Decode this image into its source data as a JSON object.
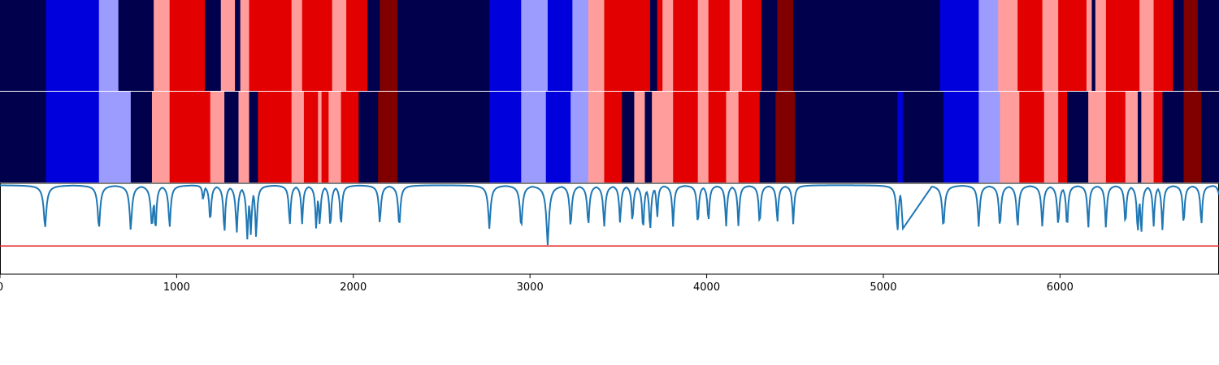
{
  "chart_data": {
    "type": "heatmap",
    "title": "",
    "xlabel": "",
    "ylabel": "",
    "xlim": [
      0,
      6900
    ],
    "x_ticks": [
      0,
      1000,
      2000,
      3000,
      4000,
      5000,
      6000
    ],
    "x_tick_labels": [
      "0",
      "1000",
      "2000",
      "3000",
      "4000",
      "5000",
      "6000"
    ],
    "legend": "none",
    "grid": false,
    "colors": {
      "0": "#00004c",
      "1": "#0000dd",
      "2": "#9c9cff",
      "3": "#ff9c9c",
      "4": "#e30000",
      "5": "#800000"
    },
    "tracks": [
      {
        "name": "",
        "segments": [
          [
            0,
            260,
            0
          ],
          [
            260,
            560,
            1
          ],
          [
            560,
            670,
            2
          ],
          [
            670,
            870,
            0
          ],
          [
            870,
            960,
            3
          ],
          [
            960,
            1160,
            4
          ],
          [
            1160,
            1250,
            0
          ],
          [
            1250,
            1330,
            3
          ],
          [
            1330,
            1360,
            0
          ],
          [
            1360,
            1410,
            3
          ],
          [
            1410,
            1650,
            4
          ],
          [
            1650,
            1710,
            3
          ],
          [
            1710,
            1880,
            4
          ],
          [
            1880,
            1960,
            3
          ],
          [
            1960,
            2080,
            4
          ],
          [
            2080,
            2150,
            0
          ],
          [
            2150,
            2250,
            5
          ],
          [
            2250,
            2770,
            0
          ],
          [
            2770,
            2950,
            1
          ],
          [
            2950,
            3100,
            2
          ],
          [
            3100,
            3240,
            1
          ],
          [
            3240,
            3330,
            2
          ],
          [
            3330,
            3420,
            3
          ],
          [
            3420,
            3680,
            4
          ],
          [
            3680,
            3720,
            0
          ],
          [
            3720,
            3750,
            4
          ],
          [
            3750,
            3810,
            3
          ],
          [
            3810,
            3950,
            4
          ],
          [
            3950,
            4010,
            3
          ],
          [
            4010,
            4130,
            4
          ],
          [
            4130,
            4200,
            3
          ],
          [
            4200,
            4310,
            4
          ],
          [
            4310,
            4400,
            0
          ],
          [
            4400,
            4490,
            5
          ],
          [
            4490,
            5320,
            0
          ],
          [
            5320,
            5540,
            1
          ],
          [
            5540,
            5650,
            2
          ],
          [
            5650,
            5760,
            3
          ],
          [
            5760,
            5900,
            4
          ],
          [
            5900,
            5990,
            3
          ],
          [
            5990,
            6150,
            4
          ],
          [
            6150,
            6180,
            3
          ],
          [
            6180,
            6200,
            0
          ],
          [
            6200,
            6260,
            3
          ],
          [
            6260,
            6450,
            4
          ],
          [
            6450,
            6530,
            3
          ],
          [
            6530,
            6640,
            4
          ],
          [
            6640,
            6700,
            0
          ],
          [
            6700,
            6780,
            5
          ],
          [
            6780,
            6900,
            0
          ]
        ]
      },
      {
        "name": "",
        "segments": [
          [
            0,
            260,
            0
          ],
          [
            260,
            560,
            1
          ],
          [
            560,
            740,
            2
          ],
          [
            740,
            860,
            0
          ],
          [
            860,
            960,
            3
          ],
          [
            960,
            1190,
            4
          ],
          [
            1190,
            1270,
            3
          ],
          [
            1270,
            1350,
            0
          ],
          [
            1350,
            1410,
            3
          ],
          [
            1410,
            1460,
            0
          ],
          [
            1460,
            1650,
            4
          ],
          [
            1650,
            1720,
            3
          ],
          [
            1720,
            1800,
            4
          ],
          [
            1800,
            1820,
            3
          ],
          [
            1820,
            1860,
            4
          ],
          [
            1860,
            1930,
            3
          ],
          [
            1930,
            2030,
            4
          ],
          [
            2030,
            2140,
            0
          ],
          [
            2140,
            2250,
            5
          ],
          [
            2250,
            2770,
            0
          ],
          [
            2770,
            2950,
            1
          ],
          [
            2950,
            3090,
            2
          ],
          [
            3090,
            3230,
            1
          ],
          [
            3230,
            3330,
            2
          ],
          [
            3330,
            3420,
            3
          ],
          [
            3420,
            3520,
            4
          ],
          [
            3520,
            3590,
            0
          ],
          [
            3590,
            3650,
            3
          ],
          [
            3650,
            3690,
            0
          ],
          [
            3690,
            3810,
            3
          ],
          [
            3810,
            3950,
            4
          ],
          [
            3950,
            4010,
            3
          ],
          [
            4010,
            4110,
            4
          ],
          [
            4110,
            4180,
            3
          ],
          [
            4180,
            4300,
            4
          ],
          [
            4300,
            4390,
            0
          ],
          [
            4390,
            4500,
            5
          ],
          [
            4500,
            5080,
            0
          ],
          [
            5080,
            5110,
            1
          ],
          [
            5110,
            5340,
            0
          ],
          [
            5340,
            5540,
            1
          ],
          [
            5540,
            5660,
            2
          ],
          [
            5660,
            5770,
            3
          ],
          [
            5770,
            5910,
            4
          ],
          [
            5910,
            5990,
            3
          ],
          [
            5990,
            6040,
            4
          ],
          [
            6040,
            6160,
            0
          ],
          [
            6160,
            6260,
            3
          ],
          [
            6260,
            6370,
            4
          ],
          [
            6370,
            6440,
            3
          ],
          [
            6440,
            6460,
            0
          ],
          [
            6460,
            6530,
            3
          ],
          [
            6530,
            6580,
            4
          ],
          [
            6580,
            6700,
            0
          ],
          [
            6700,
            6800,
            5
          ],
          [
            6800,
            6900,
            0
          ]
        ]
      }
    ],
    "line": {
      "name": "",
      "color": "#1f77b4",
      "ylim": [
        0,
        1
      ],
      "baseline": 0.98,
      "dips": [
        [
          255,
          0.5,
          9
        ],
        [
          560,
          0.48,
          8
        ],
        [
          740,
          0.48,
          8
        ],
        [
          860,
          0.5,
          8
        ],
        [
          880,
          0.44,
          6
        ],
        [
          960,
          0.5,
          7
        ],
        [
          1150,
          0.8,
          5
        ],
        [
          1190,
          0.55,
          6
        ],
        [
          1270,
          0.42,
          6
        ],
        [
          1340,
          0.45,
          7
        ],
        [
          1400,
          0.38,
          7
        ],
        [
          1420,
          0.42,
          6
        ],
        [
          1450,
          0.38,
          6
        ],
        [
          1640,
          0.52,
          6
        ],
        [
          1710,
          0.55,
          6
        ],
        [
          1790,
          0.48,
          6
        ],
        [
          1810,
          0.52,
          6
        ],
        [
          1870,
          0.48,
          6
        ],
        [
          1930,
          0.5,
          6
        ],
        [
          2150,
          0.55,
          7
        ],
        [
          2260,
          0.5,
          7
        ],
        [
          2770,
          0.5,
          8
        ],
        [
          2950,
          0.5,
          8
        ],
        [
          3100,
          0.32,
          9
        ],
        [
          3230,
          0.5,
          7
        ],
        [
          3330,
          0.52,
          7
        ],
        [
          3420,
          0.52,
          7
        ],
        [
          3510,
          0.55,
          6
        ],
        [
          3580,
          0.55,
          6
        ],
        [
          3640,
          0.45,
          6
        ],
        [
          3680,
          0.45,
          6
        ],
        [
          3720,
          0.6,
          5
        ],
        [
          3810,
          0.52,
          6
        ],
        [
          3950,
          0.52,
          6
        ],
        [
          4010,
          0.55,
          6
        ],
        [
          4110,
          0.52,
          6
        ],
        [
          4180,
          0.52,
          6
        ],
        [
          4300,
          0.52,
          6
        ],
        [
          4400,
          0.55,
          6
        ],
        [
          4490,
          0.55,
          6
        ],
        [
          5080,
          0.45,
          7
        ],
        [
          5110,
          0.48,
          6
        ],
        [
          5340,
          0.5,
          8
        ],
        [
          5540,
          0.52,
          7
        ],
        [
          5660,
          0.5,
          7
        ],
        [
          5760,
          0.5,
          7
        ],
        [
          5900,
          0.52,
          7
        ],
        [
          5990,
          0.52,
          7
        ],
        [
          6040,
          0.48,
          6
        ],
        [
          6160,
          0.5,
          6
        ],
        [
          6260,
          0.5,
          6
        ],
        [
          6370,
          0.52,
          6
        ],
        [
          6440,
          0.42,
          6
        ],
        [
          6460,
          0.42,
          6
        ],
        [
          6530,
          0.52,
          6
        ],
        [
          6580,
          0.48,
          6
        ],
        [
          6700,
          0.52,
          6
        ],
        [
          6800,
          0.52,
          6
        ],
        [
          6900,
          0.88,
          8
        ]
      ],
      "ramp": [
        5110,
        5280
      ]
    },
    "threshold": {
      "value": 0.31,
      "color": "#e31a1c"
    }
  }
}
